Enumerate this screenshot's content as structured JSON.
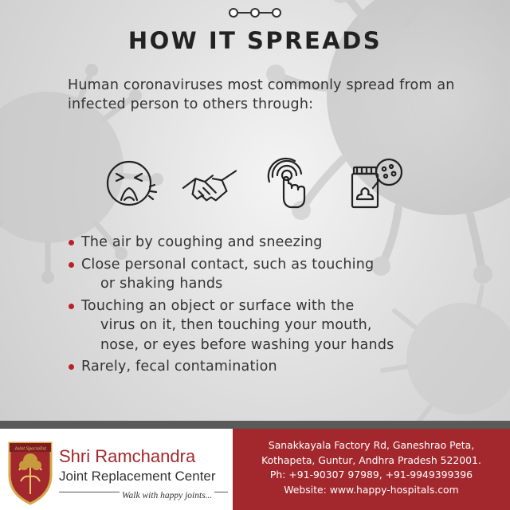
{
  "title": "HOW IT SPREADS",
  "intro": "Human coronaviruses most commonly spread from an infected person to others through:",
  "icons": [
    "sneezing-face-icon",
    "handshake-icon",
    "touch-surface-icon",
    "fecal-sample-icon"
  ],
  "bullets": [
    {
      "line1": "The air by coughing and sneezing",
      "line2": "",
      "line3": ""
    },
    {
      "line1": "Close personal contact, such as touching",
      "line2": "or shaking hands",
      "line3": ""
    },
    {
      "line1": "Touching an object or surface with the",
      "line2": "virus on it, then touching your mouth,",
      "line3": "nose, or eyes before washing your hands"
    },
    {
      "line1": "Rarely, fecal contamination",
      "line2": "",
      "line3": ""
    }
  ],
  "brand": {
    "logo_text": "Joint Specialist",
    "name": "Shri Ramchandra",
    "subtitle": "Joint Replacement Center",
    "tagline": "Walk with happy joints..."
  },
  "contact": {
    "address_line1": "Sanakkayala Factory Rd, Ganeshrao Peta,",
    "address_line2": "Kothapeta, Guntur, Andhra Pradesh 522001.",
    "phone": "Ph: +91-90307 97989, +91-9949399396",
    "website": "Website:  www.happy-hospitals.com"
  },
  "colors": {
    "accent": "#a3282d",
    "bullet": "#b8202a",
    "text": "#333333"
  }
}
